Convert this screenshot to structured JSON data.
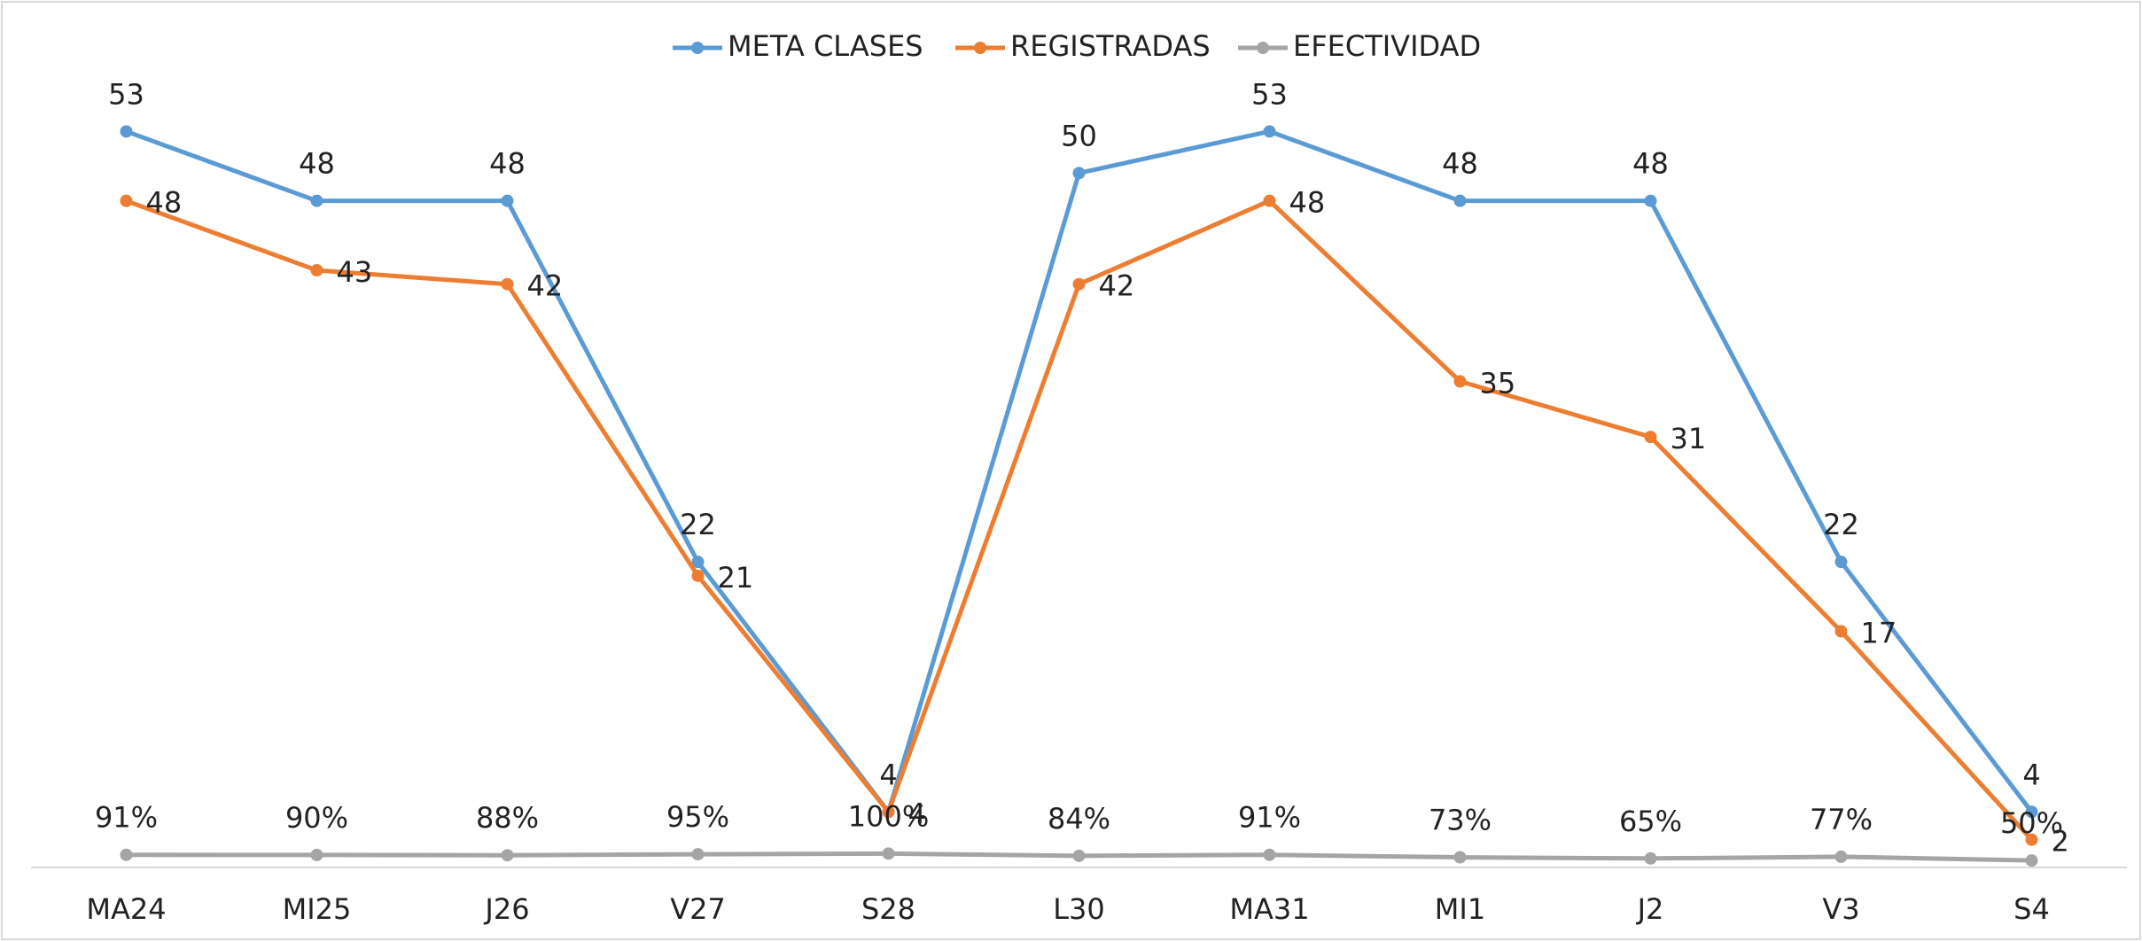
{
  "chart_data": {
    "type": "line",
    "categories": [
      "MA24",
      "MI25",
      "J26",
      "V27",
      "S28",
      "L30",
      "MA31",
      "MI1",
      "J2",
      "V3",
      "S4"
    ],
    "series": [
      {
        "name": "META CLASES",
        "color": "#5b9bd5",
        "values": [
          53,
          48,
          48,
          22,
          4,
          50,
          53,
          48,
          48,
          22,
          4
        ]
      },
      {
        "name": "REGISTRADAS",
        "color": "#ed7d31",
        "values": [
          48,
          43,
          42,
          21,
          4,
          42,
          48,
          35,
          31,
          17,
          2
        ]
      },
      {
        "name": "EFECTIVIDAD",
        "color": "#a5a5a5",
        "values": [
          0.91,
          0.9,
          0.88,
          0.95,
          1,
          0.84,
          0.91,
          0.73,
          0.65,
          0.77,
          0.5
        ],
        "value_labels": [
          "91%",
          "90%",
          "88%",
          "95%",
          "100%",
          "84%",
          "91%",
          "73%",
          "65%",
          "77%",
          "50%"
        ]
      }
    ],
    "ylim": [
      0,
      60
    ],
    "legend": "top"
  }
}
